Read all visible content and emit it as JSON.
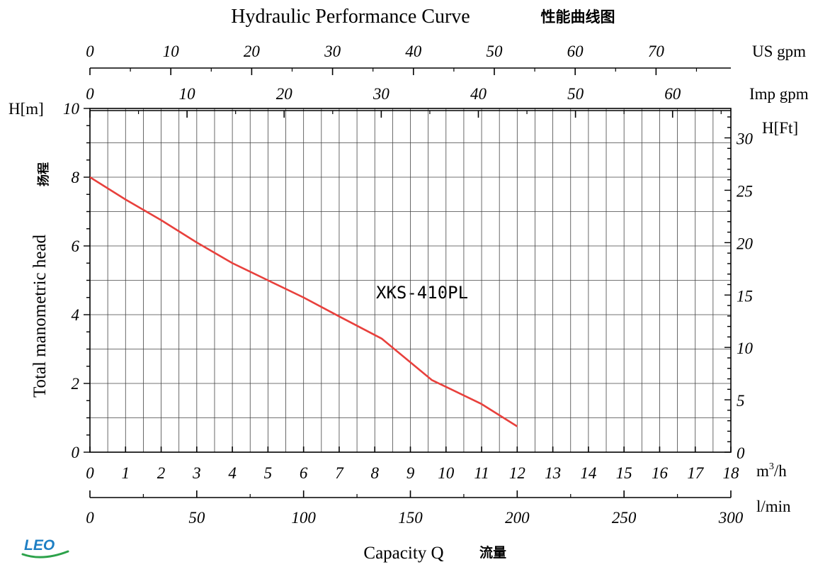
{
  "chart_data": {
    "type": "line",
    "title": "Hydraulic Performance Curve",
    "title_cn": "性能曲线图",
    "series": [
      {
        "name": "XKS-410PL",
        "color": "#e8403c",
        "x": [
          0,
          1,
          2,
          3,
          4,
          5,
          6,
          7,
          8.2,
          9.6,
          11,
          12
        ],
        "y": [
          8.0,
          7.35,
          6.75,
          6.1,
          5.5,
          5.0,
          4.5,
          3.95,
          3.3,
          2.1,
          1.4,
          0.75
        ]
      }
    ],
    "x_axis": {
      "label": "m³/h",
      "range": [
        0,
        18
      ],
      "ticks": [
        "0",
        "1",
        "2",
        "3",
        "4",
        "5",
        "6",
        "7",
        "8",
        "9",
        "10",
        "11",
        "12",
        "13",
        "14",
        "15",
        "16",
        "17",
        "18"
      ]
    },
    "lmin_axis": {
      "label": "l/min",
      "range": [
        0,
        300
      ],
      "ticks": [
        "0",
        "50",
        "100",
        "150",
        "200",
        "250",
        "300"
      ]
    },
    "us_gpm_axis": {
      "label": "US gpm",
      "range": [
        0,
        79.25
      ],
      "ticks": [
        "0",
        "10",
        "20",
        "30",
        "40",
        "50",
        "60",
        "70"
      ]
    },
    "imp_gpm_axis": {
      "label": "Imp gpm",
      "range": [
        0,
        66
      ],
      "ticks": [
        "0",
        "10",
        "20",
        "30",
        "40",
        "50",
        "60"
      ]
    },
    "y_axis": {
      "unit_label": "H[m]",
      "label": "Total manometric head",
      "label_cn": "扬程",
      "range": [
        0,
        10
      ],
      "ticks": [
        "0",
        "2",
        "4",
        "6",
        "8",
        "10"
      ]
    },
    "y2_axis": {
      "label": "H[Ft]",
      "range": [
        0,
        32.81
      ],
      "ticks": [
        "0",
        "5",
        "10",
        "15",
        "20",
        "25",
        "30"
      ]
    },
    "xlabel": "Capacity Q",
    "xlabel_cn": "流量",
    "grid": true,
    "logo": "LEO"
  }
}
